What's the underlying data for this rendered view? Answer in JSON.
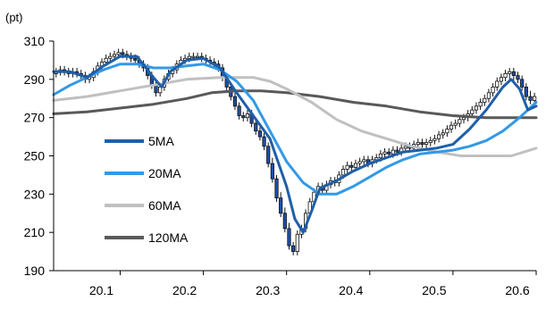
{
  "chart_data": {
    "type": "line",
    "unit_label": "(pt)",
    "ylim": [
      190,
      310
    ],
    "y_ticks": [
      310,
      290,
      270,
      250,
      230,
      210,
      190
    ],
    "xlim": [
      20.02,
      20.6
    ],
    "x_ticks": [
      "20.1",
      "20.2",
      "20.3",
      "20.4",
      "20.5",
      "20.6"
    ],
    "grid": false,
    "legend_position": "center-left",
    "series": [
      {
        "name": "5MA",
        "color": "#1f5fa8",
        "width": 3,
        "x": [
          20.02,
          20.04,
          20.06,
          20.08,
          20.1,
          20.12,
          20.14,
          20.15,
          20.16,
          20.18,
          20.2,
          20.22,
          20.24,
          20.26,
          20.28,
          20.3,
          20.31,
          20.32,
          20.33,
          20.34,
          20.36,
          20.38,
          20.4,
          20.42,
          20.44,
          20.46,
          20.48,
          20.5,
          20.52,
          20.54,
          20.56,
          20.57,
          20.58,
          20.59,
          20.6
        ],
        "values": [
          294,
          294,
          291,
          297,
          302,
          302,
          291,
          286,
          294,
          300,
          301,
          296,
          283,
          271,
          259,
          234,
          217,
          210,
          221,
          233,
          237,
          242,
          246,
          249,
          252,
          253,
          254,
          256,
          264,
          274,
          286,
          290,
          285,
          274,
          276
        ]
      },
      {
        "name": "20MA",
        "color": "#3399e6",
        "width": 3,
        "x": [
          20.02,
          20.04,
          20.06,
          20.08,
          20.1,
          20.12,
          20.14,
          20.16,
          20.18,
          20.2,
          20.22,
          20.24,
          20.26,
          20.28,
          20.3,
          20.32,
          20.34,
          20.36,
          20.38,
          20.4,
          20.42,
          20.44,
          20.46,
          20.48,
          20.5,
          20.52,
          20.54,
          20.56,
          20.58,
          20.6
        ],
        "values": [
          282,
          287,
          291,
          295,
          298,
          298,
          296,
          296,
          297,
          298,
          295,
          289,
          279,
          263,
          247,
          236,
          230,
          230,
          234,
          239,
          244,
          248,
          251,
          252,
          253,
          255,
          258,
          263,
          270,
          278
        ]
      },
      {
        "name": "60MA",
        "color": "#c0c0c0",
        "width": 3,
        "x": [
          20.02,
          20.06,
          20.1,
          20.14,
          20.18,
          20.22,
          20.26,
          20.28,
          20.3,
          20.33,
          20.36,
          20.39,
          20.42,
          20.45,
          20.48,
          20.51,
          20.54,
          20.57,
          20.6
        ],
        "values": [
          279,
          281,
          284,
          287,
          290,
          291,
          291,
          289,
          285,
          278,
          269,
          263,
          259,
          255,
          252,
          250,
          250,
          250,
          254
        ]
      },
      {
        "name": "120MA",
        "color": "#595959",
        "width": 3,
        "x": [
          20.02,
          20.06,
          20.1,
          20.14,
          20.18,
          20.21,
          20.24,
          20.27,
          20.3,
          20.34,
          20.38,
          20.42,
          20.46,
          20.5,
          20.54,
          20.58,
          20.6
        ],
        "values": [
          272,
          273,
          275,
          277,
          280,
          283,
          284,
          284,
          283,
          281,
          278,
          276,
          273,
          271,
          270,
          270,
          270
        ]
      }
    ],
    "candles": {
      "up_color": "#ffffff",
      "down_color": "#1f4fa8",
      "stroke": "#111111",
      "x": [
        20.023,
        20.028,
        20.033,
        20.038,
        20.043,
        20.048,
        20.053,
        20.058,
        20.063,
        20.068,
        20.073,
        20.078,
        20.083,
        20.088,
        20.093,
        20.098,
        20.103,
        20.108,
        20.113,
        20.118,
        20.123,
        20.128,
        20.133,
        20.138,
        20.143,
        20.148,
        20.153,
        20.158,
        20.163,
        20.168,
        20.173,
        20.178,
        20.183,
        20.188,
        20.193,
        20.198,
        20.203,
        20.208,
        20.213,
        20.218,
        20.223,
        20.228,
        20.233,
        20.238,
        20.243,
        20.248,
        20.253,
        20.258,
        20.263,
        20.268,
        20.273,
        20.278,
        20.283,
        20.288,
        20.293,
        20.298,
        20.303,
        20.308,
        20.313,
        20.318,
        20.323,
        20.328,
        20.333,
        20.338,
        20.343,
        20.348,
        20.353,
        20.358,
        20.363,
        20.368,
        20.373,
        20.378,
        20.383,
        20.388,
        20.393,
        20.398,
        20.403,
        20.408,
        20.413,
        20.418,
        20.423,
        20.428,
        20.433,
        20.438,
        20.443,
        20.448,
        20.453,
        20.458,
        20.463,
        20.468,
        20.473,
        20.478,
        20.483,
        20.488,
        20.493,
        20.498,
        20.503,
        20.508,
        20.513,
        20.518,
        20.523,
        20.528,
        20.533,
        20.538,
        20.543,
        20.548,
        20.553,
        20.558,
        20.563,
        20.568,
        20.573,
        20.578,
        20.583,
        20.588,
        20.593,
        20.598
      ],
      "open": [
        293,
        294,
        295,
        294,
        293,
        294,
        293,
        292,
        290,
        291,
        294,
        297,
        299,
        301,
        302,
        303,
        304,
        303,
        302,
        301,
        300,
        298,
        296,
        292,
        287,
        283,
        286,
        290,
        293,
        295,
        298,
        300,
        301,
        302,
        302,
        302,
        301,
        300,
        299,
        298,
        296,
        291,
        286,
        281,
        276,
        271,
        270,
        272,
        267,
        263,
        260,
        255,
        246,
        238,
        228,
        220,
        212,
        203,
        200,
        209,
        212,
        220,
        226,
        231,
        234,
        232,
        235,
        237,
        236,
        240,
        243,
        245,
        244,
        246,
        247,
        248,
        246,
        248,
        249,
        251,
        252,
        251,
        253,
        252,
        254,
        255,
        254,
        256,
        257,
        256,
        257,
        258,
        259,
        261,
        262,
        264,
        266,
        267,
        269,
        270,
        272,
        274,
        276,
        278,
        280,
        283,
        286,
        289,
        291,
        293,
        294,
        292,
        290,
        286,
        281,
        279
      ],
      "close": [
        294,
        295,
        294,
        293,
        294,
        293,
        292,
        290,
        291,
        294,
        297,
        299,
        301,
        302,
        303,
        304,
        303,
        302,
        301,
        300,
        298,
        296,
        292,
        287,
        283,
        286,
        290,
        293,
        295,
        298,
        300,
        301,
        302,
        302,
        302,
        301,
        300,
        299,
        298,
        296,
        291,
        286,
        281,
        276,
        271,
        270,
        272,
        267,
        263,
        260,
        255,
        246,
        238,
        228,
        220,
        212,
        203,
        200,
        209,
        212,
        220,
        226,
        231,
        234,
        232,
        235,
        237,
        236,
        240,
        243,
        245,
        244,
        246,
        247,
        248,
        246,
        248,
        249,
        251,
        252,
        251,
        253,
        252,
        254,
        255,
        254,
        256,
        257,
        256,
        257,
        258,
        259,
        261,
        262,
        264,
        266,
        267,
        269,
        270,
        272,
        274,
        276,
        278,
        280,
        283,
        286,
        289,
        291,
        293,
        294,
        292,
        290,
        286,
        281,
        279,
        281
      ],
      "high": [
        296,
        297,
        297,
        296,
        296,
        296,
        295,
        294,
        293,
        296,
        299,
        301,
        303,
        304,
        305,
        306,
        306,
        305,
        304,
        303,
        302,
        300,
        298,
        294,
        290,
        288,
        292,
        295,
        297,
        300,
        302,
        303,
        304,
        304,
        304,
        304,
        303,
        302,
        301,
        300,
        298,
        293,
        288,
        283,
        278,
        273,
        274,
        274,
        269,
        265,
        262,
        257,
        249,
        240,
        231,
        223,
        215,
        205,
        211,
        214,
        222,
        228,
        233,
        236,
        236,
        237,
        239,
        239,
        242,
        245,
        247,
        247,
        248,
        249,
        250,
        250,
        250,
        251,
        253,
        254,
        254,
        255,
        255,
        256,
        257,
        257,
        258,
        259,
        259,
        259,
        260,
        261,
        263,
        264,
        266,
        268,
        269,
        271,
        272,
        274,
        276,
        278,
        280,
        282,
        285,
        288,
        291,
        293,
        295,
        296,
        296,
        294,
        292,
        288,
        284,
        283
      ],
      "low": [
        291,
        292,
        292,
        291,
        291,
        291,
        290,
        288,
        288,
        289,
        292,
        295,
        297,
        299,
        300,
        301,
        301,
        300,
        299,
        298,
        296,
        294,
        290,
        285,
        281,
        281,
        284,
        288,
        291,
        293,
        296,
        298,
        299,
        300,
        300,
        299,
        298,
        297,
        296,
        294,
        289,
        284,
        279,
        274,
        269,
        268,
        268,
        265,
        261,
        258,
        253,
        244,
        236,
        226,
        218,
        210,
        201,
        198,
        198,
        207,
        210,
        218,
        224,
        229,
        230,
        230,
        233,
        234,
        234,
        238,
        241,
        242,
        242,
        244,
        245,
        244,
        244,
        246,
        247,
        249,
        249,
        249,
        250,
        250,
        252,
        252,
        252,
        254,
        254,
        254,
        255,
        256,
        257,
        259,
        260,
        262,
        264,
        265,
        267,
        268,
        270,
        272,
        274,
        276,
        278,
        281,
        284,
        287,
        289,
        290,
        289,
        288,
        284,
        279,
        277,
        277
      ]
    }
  }
}
